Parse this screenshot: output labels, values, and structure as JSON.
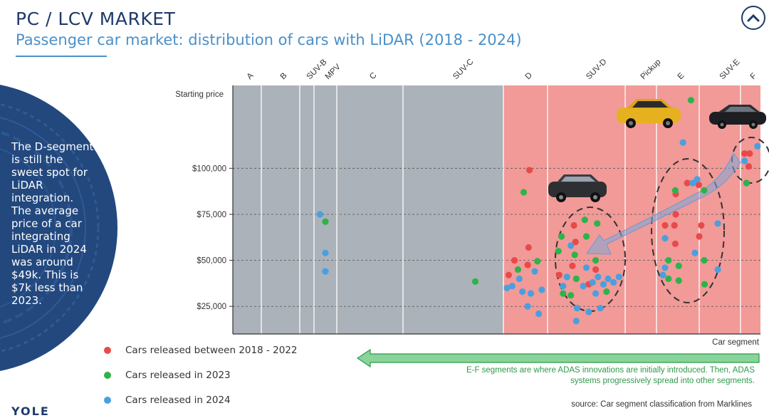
{
  "header": {
    "title": "PC / LCV MARKET",
    "subtitle": "Passenger car market: distribution of cars with LiDAR (2018 - 2024)"
  },
  "side_note": "The D-segment is still the sweet spot for LiDAR integration. The average price of a car integrating LiDAR in 2024 was around $49k. This is $7k less than 2023.",
  "logo_text": "YOLE",
  "colors": {
    "red": "#e84a4a",
    "green": "#2db34a",
    "blue": "#4a9fe0",
    "gray_zone": "#abb2b9",
    "pink_zone": "#f19a98",
    "navy": "#1f3a6b",
    "arrow_green": "#88d49a"
  },
  "chart_data": {
    "type": "scatter",
    "title": "Passenger car market: distribution of cars with LiDAR (2018 - 2024)",
    "ylabel": "Starting price",
    "xlabel": "Car segment",
    "categories": [
      "A",
      "B",
      "SUV-B",
      "MPV",
      "C",
      "SUV-C",
      "D",
      "SUV-D",
      "Pickup",
      "E",
      "SUV-E",
      "F"
    ],
    "ylim": [
      10000,
      145000
    ],
    "yticks": [
      {
        "value": 25000,
        "label": "$25,000"
      },
      {
        "value": 50000,
        "label": "$50,000"
      },
      {
        "value": 75000,
        "label": "$75,000"
      },
      {
        "value": 100000,
        "label": "$100,000"
      }
    ],
    "legend": [
      {
        "name": "Cars released between 2018 - 2022",
        "color": "red"
      },
      {
        "name": "Cars released in 2023",
        "color": "green"
      },
      {
        "name": "Cars released in 2024",
        "color": "blue"
      }
    ],
    "series": [
      {
        "name": "Cars released between 2018 - 2022",
        "color": "red",
        "points": [
          {
            "segment": "D",
            "offset": 0.12,
            "price": 42000
          },
          {
            "segment": "D",
            "offset": 0.25,
            "price": 50000
          },
          {
            "segment": "D",
            "offset": 0.55,
            "price": 47500
          },
          {
            "segment": "D",
            "offset": 0.57,
            "price": 57000
          },
          {
            "segment": "D",
            "offset": 0.59,
            "price": 99000
          },
          {
            "segment": "SUV-D",
            "offset": 0.15,
            "price": 42000
          },
          {
            "segment": "SUV-D",
            "offset": 0.34,
            "price": 69000
          },
          {
            "segment": "SUV-D",
            "offset": 0.36,
            "price": 60000
          },
          {
            "segment": "SUV-D",
            "offset": 0.32,
            "price": 47000
          },
          {
            "segment": "SUV-D",
            "offset": 0.53,
            "price": 37000
          },
          {
            "segment": "SUV-D",
            "offset": 0.62,
            "price": 45000
          },
          {
            "segment": "E",
            "offset": 0.45,
            "price": 86000
          },
          {
            "segment": "E",
            "offset": 0.45,
            "price": 75000
          },
          {
            "segment": "E",
            "offset": 0.42,
            "price": 69000
          },
          {
            "segment": "E",
            "offset": 0.44,
            "price": 59000
          },
          {
            "segment": "E",
            "offset": 0.2,
            "price": 69000
          },
          {
            "segment": "E",
            "offset": 0.72,
            "price": 92000
          },
          {
            "segment": "E",
            "offset": 0.99,
            "price": 91000
          },
          {
            "segment": "SUV-E",
            "offset": 0.05,
            "price": 69000
          },
          {
            "segment": "SUV-E",
            "offset": 0.0,
            "price": 63000
          },
          {
            "segment": "F",
            "offset": 0.2,
            "price": 108000
          },
          {
            "segment": "F",
            "offset": 0.46,
            "price": 108000
          },
          {
            "segment": "F",
            "offset": 0.41,
            "price": 101000
          }
        ]
      },
      {
        "name": "Cars released in 2023",
        "color": "green",
        "points": [
          {
            "segment": "MPV",
            "offset": 0.5,
            "price": 71000
          },
          {
            "segment": "SUV-C",
            "offset": 0.72,
            "price": 38500
          },
          {
            "segment": "D",
            "offset": 0.46,
            "price": 87000
          },
          {
            "segment": "D",
            "offset": 0.33,
            "price": 45000
          },
          {
            "segment": "D",
            "offset": 0.77,
            "price": 49500
          },
          {
            "segment": "SUV-D",
            "offset": 0.14,
            "price": 55000
          },
          {
            "segment": "SUV-D",
            "offset": 0.18,
            "price": 63000
          },
          {
            "segment": "SUV-D",
            "offset": 0.35,
            "price": 53000
          },
          {
            "segment": "SUV-D",
            "offset": 0.37,
            "price": 40000
          },
          {
            "segment": "SUV-D",
            "offset": 0.48,
            "price": 72000
          },
          {
            "segment": "SUV-D",
            "offset": 0.5,
            "price": 63000
          },
          {
            "segment": "SUV-D",
            "offset": 0.64,
            "price": 70000
          },
          {
            "segment": "SUV-D",
            "offset": 0.62,
            "price": 50000
          },
          {
            "segment": "SUV-D",
            "offset": 0.3,
            "price": 31000
          },
          {
            "segment": "SUV-D",
            "offset": 0.76,
            "price": 33000
          },
          {
            "segment": "SUV-D",
            "offset": 0.2,
            "price": 32000
          },
          {
            "segment": "E",
            "offset": 0.28,
            "price": 50000
          },
          {
            "segment": "E",
            "offset": 0.28,
            "price": 40000
          },
          {
            "segment": "E",
            "offset": 0.44,
            "price": 88000
          },
          {
            "segment": "E",
            "offset": 0.52,
            "price": 39000
          },
          {
            "segment": "E",
            "offset": 0.52,
            "price": 47000
          },
          {
            "segment": "SUV-E",
            "offset": 0.12,
            "price": 88000
          },
          {
            "segment": "SUV-E",
            "offset": 0.12,
            "price": 50000
          },
          {
            "segment": "SUV-E",
            "offset": 0.13,
            "price": 37000
          },
          {
            "segment": "SUV-E",
            "offset": -0.2,
            "price": 137000
          },
          {
            "segment": "F",
            "offset": 0.3,
            "price": 92000
          }
        ]
      },
      {
        "name": "Cars released in 2024",
        "color": "blue",
        "points": [
          {
            "segment": "MPV",
            "offset": 0.26,
            "price": 75000
          },
          {
            "segment": "MPV",
            "offset": 0.5,
            "price": 54000
          },
          {
            "segment": "MPV",
            "offset": 0.5,
            "price": 44000
          },
          {
            "segment": "D",
            "offset": 0.08,
            "price": 35000
          },
          {
            "segment": "D",
            "offset": 0.2,
            "price": 36000
          },
          {
            "segment": "D",
            "offset": 0.36,
            "price": 40000
          },
          {
            "segment": "D",
            "offset": 0.43,
            "price": 33000
          },
          {
            "segment": "D",
            "offset": 0.55,
            "price": 25000
          },
          {
            "segment": "D",
            "offset": 0.62,
            "price": 32000
          },
          {
            "segment": "D",
            "offset": 0.71,
            "price": 44000
          },
          {
            "segment": "D",
            "offset": 0.8,
            "price": 21000
          },
          {
            "segment": "D",
            "offset": 0.87,
            "price": 34000
          },
          {
            "segment": "SUV-D",
            "offset": 0.2,
            "price": 36000
          },
          {
            "segment": "SUV-D",
            "offset": 0.25,
            "price": 41000
          },
          {
            "segment": "SUV-D",
            "offset": 0.3,
            "price": 58000
          },
          {
            "segment": "SUV-D",
            "offset": 0.37,
            "price": 17000
          },
          {
            "segment": "SUV-D",
            "offset": 0.38,
            "price": 24000
          },
          {
            "segment": "SUV-D",
            "offset": 0.46,
            "price": 36000
          },
          {
            "segment": "SUV-D",
            "offset": 0.5,
            "price": 46000
          },
          {
            "segment": "SUV-D",
            "offset": 0.53,
            "price": 22000
          },
          {
            "segment": "SUV-D",
            "offset": 0.58,
            "price": 38000
          },
          {
            "segment": "SUV-D",
            "offset": 0.62,
            "price": 32000
          },
          {
            "segment": "SUV-D",
            "offset": 0.65,
            "price": 41000
          },
          {
            "segment": "SUV-D",
            "offset": 0.68,
            "price": 24000
          },
          {
            "segment": "SUV-D",
            "offset": 0.72,
            "price": 37000
          },
          {
            "segment": "SUV-D",
            "offset": 0.78,
            "price": 40000
          },
          {
            "segment": "SUV-D",
            "offset": 0.85,
            "price": 38000
          },
          {
            "segment": "SUV-D",
            "offset": 0.92,
            "price": 41000
          },
          {
            "segment": "E",
            "offset": 0.15,
            "price": 42000
          },
          {
            "segment": "E",
            "offset": 0.2,
            "price": 46000
          },
          {
            "segment": "E",
            "offset": 0.2,
            "price": 62000
          },
          {
            "segment": "E",
            "offset": 0.62,
            "price": 114000
          },
          {
            "segment": "E",
            "offset": 0.85,
            "price": 92000
          },
          {
            "segment": "E",
            "offset": 0.9,
            "price": 54000
          },
          {
            "segment": "SUV-E",
            "offset": -0.05,
            "price": 94000
          },
          {
            "segment": "SUV-E",
            "offset": 0.45,
            "price": 70000
          },
          {
            "segment": "SUV-E",
            "offset": 0.45,
            "price": 45000
          },
          {
            "segment": "F",
            "offset": 0.2,
            "price": 104000
          },
          {
            "segment": "F",
            "offset": 0.85,
            "price": 112000
          }
        ]
      }
    ],
    "zones": [
      {
        "from": "A",
        "to": "SUV-C",
        "color": "gray_zone"
      },
      {
        "from": "D",
        "to": "F",
        "color": "pink_zone"
      }
    ]
  },
  "annotation": {
    "text_line1": "E-F segments are where ADAS innovations are initially introduced. Then, ADAS",
    "text_line2": "systems progressively spread into other segments."
  },
  "source": "source: Car segment classification from Marklines"
}
